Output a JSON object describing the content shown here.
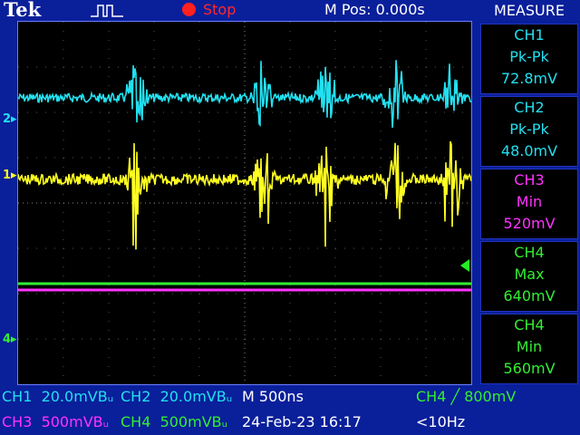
{
  "header": {
    "brand": "Tek",
    "run_state": "Stop",
    "m_pos": "M Pos: 0.000s",
    "menu_title": "MEASURE"
  },
  "measurements": [
    {
      "channel": "CH1",
      "type": "Pk-Pk",
      "value": "72.8mV",
      "color": "#22e0f0"
    },
    {
      "channel": "CH2",
      "type": "Pk-Pk",
      "value": "48.0mV",
      "color": "#22e0f0"
    },
    {
      "channel": "CH3",
      "type": "Min",
      "value": "520mV",
      "color": "#ff33ff"
    },
    {
      "channel": "CH4",
      "type": "Max",
      "value": "640mV",
      "color": "#33ee33"
    },
    {
      "channel": "CH4",
      "type": "Min",
      "value": "560mV",
      "color": "#33ee33"
    }
  ],
  "markers": {
    "ch2": "2",
    "ch1": "1",
    "ch4": "4"
  },
  "status": {
    "ch1_label": "CH1",
    "ch1_scale": "20.0mV",
    "ch2_label": "CH2",
    "ch2_scale": "20.0mV",
    "timebase": "M 500ns",
    "trigger": "CH4 ╱ 800mV",
    "ch3_label": "CH3",
    "ch3_scale": "500mV",
    "ch4_label": "CH4",
    "ch4_scale": "500mV",
    "datetime": "24-Feb-23 16:17",
    "freq": "<10Hz",
    "bw_suffix": "Bᵤ"
  },
  "colors": {
    "ch1": "#ffff22",
    "ch2": "#22e0f0",
    "ch3": "#ff33ff",
    "ch4": "#33ee33",
    "background": "#0a1f9a"
  }
}
